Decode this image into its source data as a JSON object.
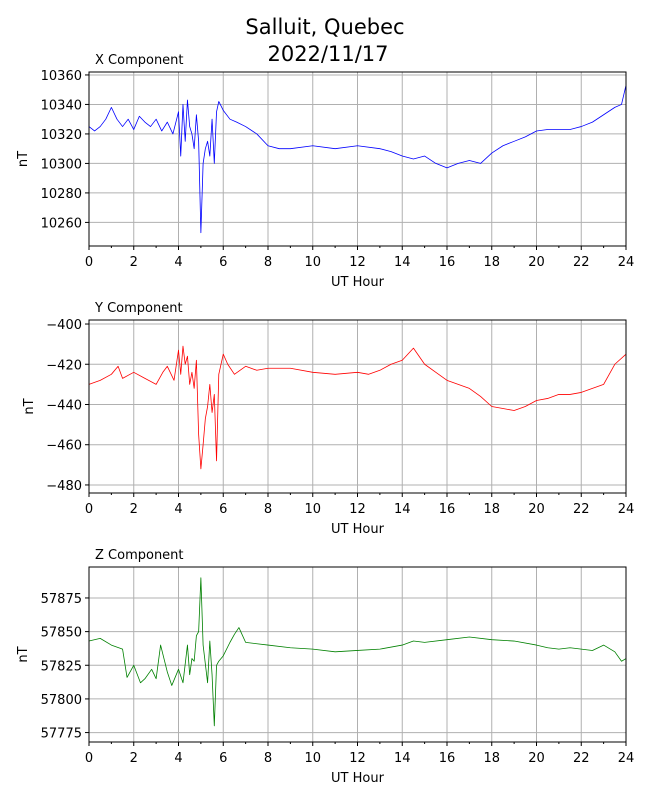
{
  "figure": {
    "title_line1": "Salluit, Quebec",
    "title_line2": "2022/11/17"
  },
  "chart_data": [
    {
      "type": "line",
      "panel_title": "X Component",
      "xlabel": "UT Hour",
      "ylabel": "nT",
      "xlim": [
        0,
        24
      ],
      "ylim": [
        10244,
        10362
      ],
      "xticks": [
        0,
        2,
        4,
        6,
        8,
        10,
        12,
        14,
        16,
        18,
        20,
        22,
        24
      ],
      "yticks": [
        10260,
        10280,
        10300,
        10320,
        10340,
        10360
      ],
      "grid": true,
      "color": "#0000ff",
      "x": [
        0,
        0.25,
        0.5,
        0.75,
        1.0,
        1.25,
        1.5,
        1.75,
        2.0,
        2.25,
        2.5,
        2.75,
        3.0,
        3.25,
        3.5,
        3.75,
        4.0,
        4.1,
        4.2,
        4.3,
        4.4,
        4.5,
        4.6,
        4.7,
        4.8,
        4.9,
        5.0,
        5.1,
        5.2,
        5.3,
        5.4,
        5.5,
        5.6,
        5.7,
        5.8,
        6.0,
        6.3,
        6.6,
        7.0,
        7.5,
        8.0,
        8.5,
        9.0,
        10.0,
        11.0,
        12.0,
        13.0,
        13.5,
        14.0,
        14.5,
        15.0,
        15.5,
        16.0,
        16.5,
        17.0,
        17.5,
        18.0,
        18.5,
        19.0,
        19.5,
        20.0,
        20.5,
        21.0,
        21.5,
        22.0,
        22.5,
        23.0,
        23.5,
        23.8,
        24.0
      ],
      "y": [
        10325,
        10322,
        10325,
        10330,
        10338,
        10330,
        10325,
        10330,
        10323,
        10332,
        10328,
        10325,
        10330,
        10322,
        10328,
        10320,
        10335,
        10305,
        10340,
        10315,
        10343,
        10325,
        10320,
        10310,
        10333,
        10315,
        10253,
        10300,
        10310,
        10315,
        10305,
        10330,
        10300,
        10335,
        10342,
        10336,
        10330,
        10328,
        10325,
        10320,
        10312,
        10310,
        10310,
        10312,
        10310,
        10312,
        10310,
        10308,
        10305,
        10303,
        10305,
        10300,
        10297,
        10300,
        10302,
        10300,
        10307,
        10312,
        10315,
        10318,
        10322,
        10323,
        10323,
        10323,
        10325,
        10328,
        10333,
        10338,
        10340,
        10353
      ]
    },
    {
      "type": "line",
      "panel_title": "Y Component",
      "xlabel": "UT Hour",
      "ylabel": "nT",
      "xlim": [
        0,
        24
      ],
      "ylim": [
        -484,
        -398
      ],
      "xticks": [
        0,
        2,
        4,
        6,
        8,
        10,
        12,
        14,
        16,
        18,
        20,
        22,
        24
      ],
      "yticks": [
        -400,
        -420,
        -440,
        -460,
        -480
      ],
      "grid": true,
      "color": "#ff0000",
      "x": [
        0,
        0.5,
        1.0,
        1.3,
        1.5,
        2.0,
        2.5,
        3.0,
        3.3,
        3.5,
        3.8,
        4.0,
        4.1,
        4.2,
        4.3,
        4.4,
        4.5,
        4.6,
        4.7,
        4.8,
        4.9,
        5.0,
        5.1,
        5.2,
        5.3,
        5.4,
        5.5,
        5.6,
        5.7,
        5.8,
        6.0,
        6.2,
        6.5,
        7.0,
        7.5,
        8.0,
        9.0,
        10.0,
        11.0,
        12.0,
        12.5,
        13.0,
        13.5,
        14.0,
        14.5,
        15.0,
        15.5,
        16.0,
        16.5,
        17.0,
        17.5,
        18.0,
        18.5,
        19.0,
        19.5,
        20.0,
        20.5,
        21.0,
        21.5,
        22.0,
        22.5,
        23.0,
        23.5,
        24.0
      ],
      "y": [
        -430,
        -428,
        -425,
        -421,
        -427,
        -424,
        -427,
        -430,
        -424,
        -421,
        -428,
        -413,
        -425,
        -411,
        -420,
        -416,
        -430,
        -424,
        -432,
        -418,
        -455,
        -472,
        -460,
        -447,
        -441,
        -430,
        -444,
        -435,
        -468,
        -425,
        -415,
        -420,
        -425,
        -421,
        -423,
        -422,
        -422,
        -424,
        -425,
        -424,
        -425,
        -423,
        -420,
        -418,
        -412,
        -420,
        -424,
        -428,
        -430,
        -432,
        -436,
        -441,
        -442,
        -443,
        -441,
        -438,
        -437,
        -435,
        -435,
        -434,
        -432,
        -430,
        -420,
        -415
      ]
    },
    {
      "type": "line",
      "panel_title": "Z Component",
      "xlabel": "UT Hour",
      "ylabel": "nT",
      "xlim": [
        0,
        24
      ],
      "ylim": [
        57768,
        57898
      ],
      "xticks": [
        0,
        2,
        4,
        6,
        8,
        10,
        12,
        14,
        16,
        18,
        20,
        22,
        24
      ],
      "yticks": [
        57775,
        57800,
        57825,
        57850,
        57875
      ],
      "grid": true,
      "color": "#008000",
      "x": [
        0,
        0.5,
        1.0,
        1.5,
        1.7,
        2.0,
        2.3,
        2.5,
        2.8,
        3.0,
        3.2,
        3.5,
        3.7,
        4.0,
        4.2,
        4.4,
        4.5,
        4.6,
        4.7,
        4.8,
        4.9,
        5.0,
        5.1,
        5.2,
        5.3,
        5.4,
        5.5,
        5.6,
        5.7,
        5.8,
        6.0,
        6.3,
        6.5,
        6.7,
        7.0,
        7.5,
        8.0,
        9.0,
        10.0,
        11.0,
        12.0,
        13.0,
        14.0,
        14.5,
        15.0,
        16.0,
        17.0,
        18.0,
        19.0,
        20.0,
        20.5,
        21.0,
        21.5,
        22.0,
        22.5,
        23.0,
        23.5,
        23.8,
        24.0
      ],
      "y": [
        57843,
        57845,
        57840,
        57837,
        57816,
        57825,
        57812,
        57815,
        57822,
        57815,
        57840,
        57820,
        57810,
        57822,
        57812,
        57840,
        57818,
        57830,
        57828,
        57847,
        57850,
        57890,
        57840,
        57826,
        57812,
        57843,
        57818,
        57780,
        57825,
        57828,
        57832,
        57842,
        57848,
        57853,
        57842,
        57841,
        57840,
        57838,
        57837,
        57835,
        57836,
        57837,
        57840,
        57843,
        57842,
        57844,
        57846,
        57844,
        57843,
        57840,
        57838,
        57837,
        57838,
        57837,
        57836,
        57840,
        57835,
        57828,
        57830
      ]
    }
  ]
}
